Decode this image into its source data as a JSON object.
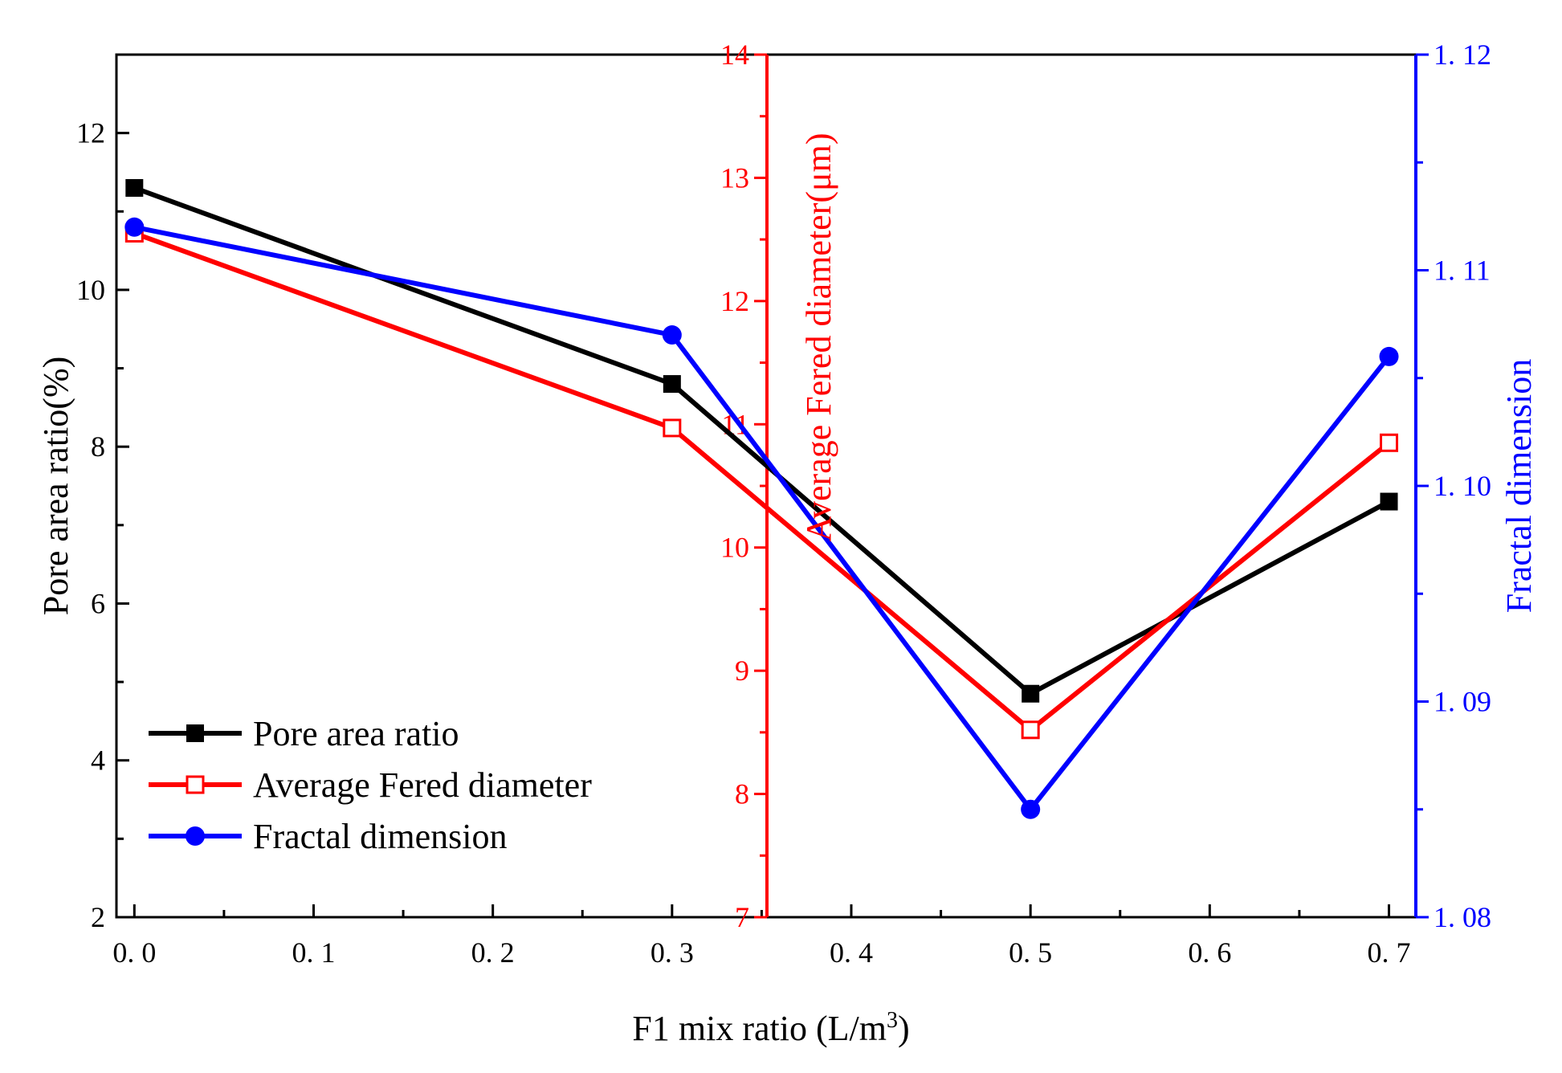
{
  "chart_data": {
    "type": "line",
    "x": [
      0.0,
      0.3,
      0.5,
      0.7
    ],
    "xlabel": "F1  mix ratio (L/m",
    "xlabel_sup": "3",
    "xlabel_end": ")",
    "xlim": [
      -0.01,
      0.715
    ],
    "xticks": [
      0.0,
      0.1,
      0.2,
      0.3,
      0.4,
      0.5,
      0.6,
      0.7
    ],
    "xtick_labels": [
      "0. 0",
      "0. 1",
      "0. 2",
      "0. 3",
      "0. 4",
      "0. 5",
      "0. 6",
      "0. 7"
    ],
    "axes": {
      "left": {
        "label": "Pore area ratio(%)",
        "ylim": [
          2,
          13
        ],
        "ticks": [
          2,
          4,
          6,
          8,
          10,
          12
        ],
        "tick_labels": [
          "2",
          "4",
          "6",
          "8",
          "10",
          "12"
        ],
        "color": "#000000"
      },
      "middle": {
        "label": "Average Fered diameter(μm)",
        "ylim": [
          7,
          14
        ],
        "ticks": [
          7,
          8,
          9,
          10,
          11,
          12,
          13,
          14
        ],
        "tick_labels": [
          "7",
          "8",
          "9",
          "10",
          "11",
          "12",
          "13",
          "14"
        ],
        "color": "#ff0000"
      },
      "right": {
        "label": "Fractal dimension",
        "ylim": [
          1.08,
          1.12
        ],
        "ticks": [
          1.08,
          1.09,
          1.1,
          1.11,
          1.12
        ],
        "tick_labels": [
          "1. 08",
          "1. 09",
          "1. 10",
          "1. 11",
          "1. 12"
        ],
        "color": "#0000ff"
      }
    },
    "series": [
      {
        "name": "Pore area ratio",
        "axis": "left",
        "values": [
          11.3,
          8.8,
          4.85,
          7.3
        ],
        "color": "#000000",
        "marker": "filled-square"
      },
      {
        "name": "Average Fered diameter",
        "axis": "middle",
        "values": [
          12.55,
          10.97,
          8.52,
          10.85
        ],
        "color": "#ff0000",
        "marker": "open-square"
      },
      {
        "name": "Fractal dimension",
        "axis": "right",
        "values": [
          1.112,
          1.107,
          1.085,
          1.106
        ],
        "color": "#0000ff",
        "marker": "filled-circle"
      }
    ],
    "legend": {
      "position": "bottom-left"
    }
  }
}
